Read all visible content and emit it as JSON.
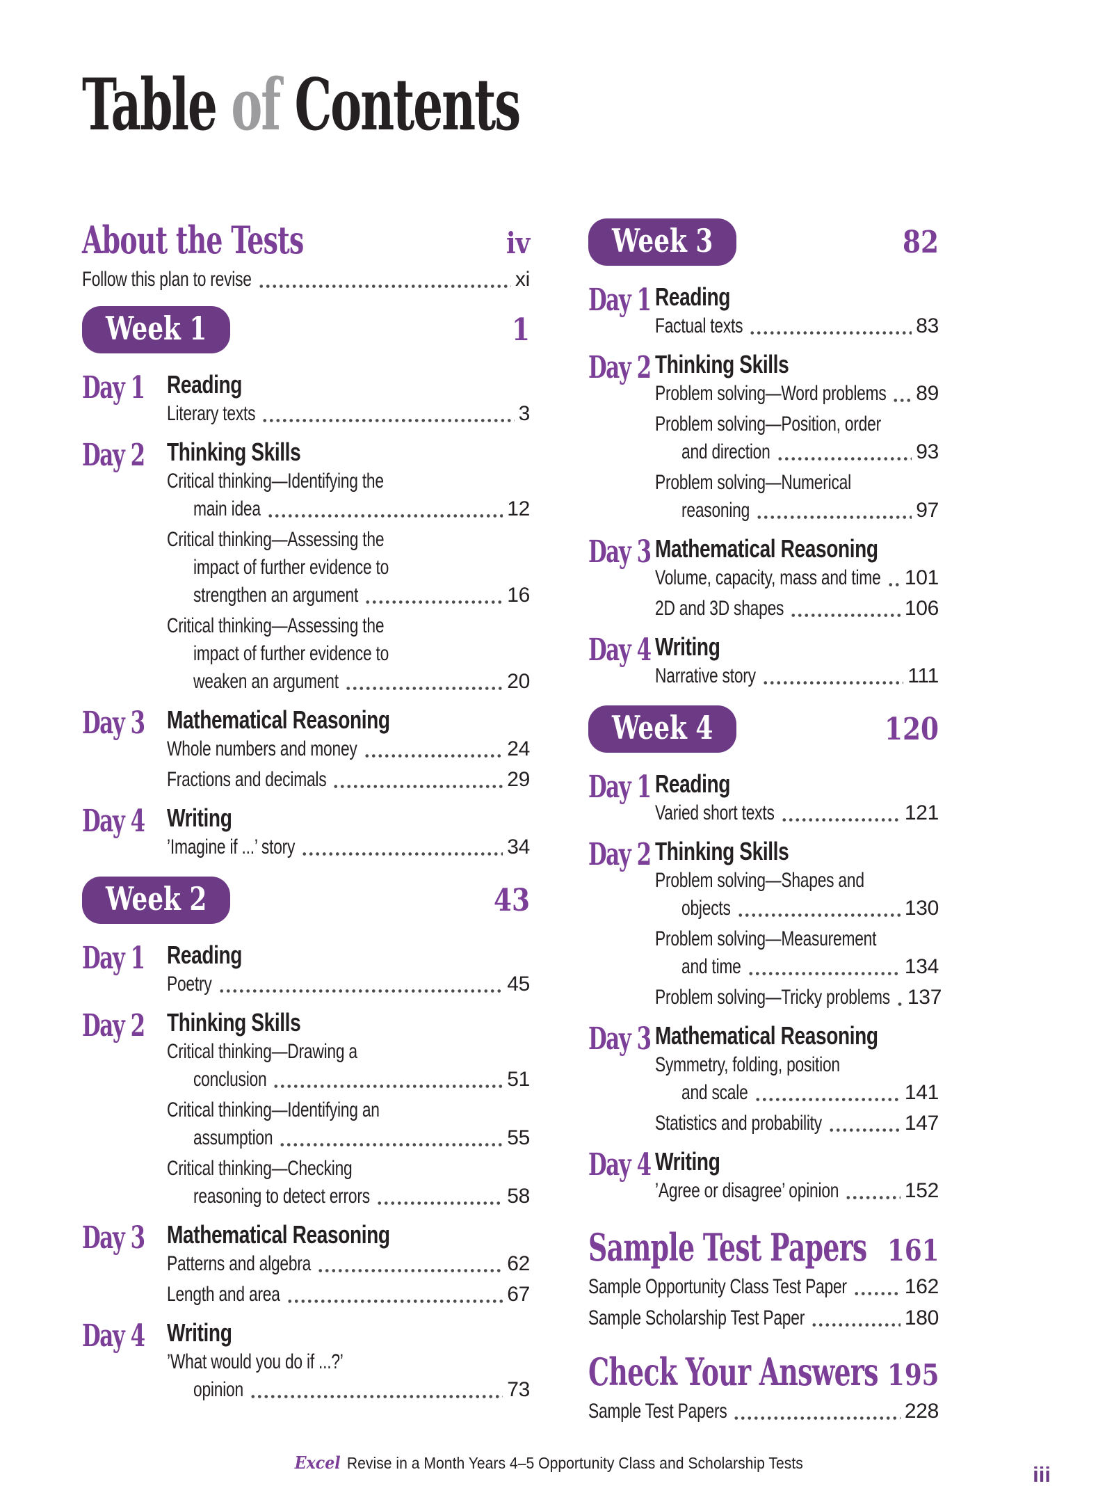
{
  "title": {
    "part1": "Table",
    "part2": "of",
    "part3": "Contents"
  },
  "colors": {
    "accent_purple": "#7c3f98",
    "badge_purple": "#6d3b86",
    "title_gray": "#9c9c9e",
    "text_black": "#242021",
    "dot_gray": "#4c4c4e"
  },
  "columns": [
    {
      "blocks": [
        {
          "type": "section",
          "title": "About the Tests",
          "page": "iv",
          "entries": [
            {
              "lines": [
                "Follow this plan to revise"
              ],
              "page": "xi"
            }
          ]
        },
        {
          "type": "week",
          "name": "Week 1",
          "page": "1",
          "days": [
            {
              "label": "Day 1",
              "category": "Reading",
              "entries": [
                {
                  "lines": [
                    "Literary texts"
                  ],
                  "page": "3"
                }
              ]
            },
            {
              "label": "Day 2",
              "category": "Thinking Skills",
              "entries": [
                {
                  "lines": [
                    "Critical thinking—Identifying the",
                    "main idea"
                  ],
                  "page": "12"
                },
                {
                  "lines": [
                    "Critical thinking—Assessing the",
                    "impact of further evidence to",
                    "strengthen an argument"
                  ],
                  "page": "16"
                },
                {
                  "lines": [
                    "Critical thinking—Assessing the",
                    "impact of further evidence to",
                    "weaken an argument"
                  ],
                  "page": "20"
                }
              ]
            },
            {
              "label": "Day 3",
              "category": "Mathematical Reasoning",
              "entries": [
                {
                  "lines": [
                    "Whole numbers and money"
                  ],
                  "page": "24"
                },
                {
                  "lines": [
                    "Fractions and decimals"
                  ],
                  "page": "29"
                }
              ]
            },
            {
              "label": "Day 4",
              "category": "Writing",
              "entries": [
                {
                  "lines": [
                    "’Imagine if ...’ story"
                  ],
                  "page": "34"
                }
              ]
            }
          ]
        },
        {
          "type": "week",
          "name": "Week 2",
          "page": "43",
          "days": [
            {
              "label": "Day 1",
              "category": "Reading",
              "entries": [
                {
                  "lines": [
                    "Poetry"
                  ],
                  "page": "45"
                }
              ]
            },
            {
              "label": "Day 2",
              "category": "Thinking Skills",
              "entries": [
                {
                  "lines": [
                    "Critical thinking—Drawing a",
                    "conclusion"
                  ],
                  "page": "51"
                },
                {
                  "lines": [
                    "Critical thinking—Identifying an",
                    "assumption"
                  ],
                  "page": "55"
                },
                {
                  "lines": [
                    "Critical thinking—Checking",
                    "reasoning to detect errors"
                  ],
                  "page": "58"
                }
              ]
            },
            {
              "label": "Day 3",
              "category": "Mathematical Reasoning",
              "entries": [
                {
                  "lines": [
                    "Patterns and algebra"
                  ],
                  "page": "62"
                },
                {
                  "lines": [
                    "Length and area"
                  ],
                  "page": "67"
                }
              ]
            },
            {
              "label": "Day 4",
              "category": "Writing",
              "entries": [
                {
                  "lines": [
                    "’What would you do if ...?’",
                    "opinion"
                  ],
                  "page": "73"
                }
              ]
            }
          ]
        }
      ]
    },
    {
      "blocks": [
        {
          "type": "week",
          "name": "Week 3",
          "page": "82",
          "days": [
            {
              "label": "Day 1",
              "category": "Reading",
              "entries": [
                {
                  "lines": [
                    "Factual texts"
                  ],
                  "page": "83"
                }
              ]
            },
            {
              "label": "Day 2",
              "category": "Thinking Skills",
              "entries": [
                {
                  "lines": [
                    "Problem solving—Word problems"
                  ],
                  "page": "89"
                },
                {
                  "lines": [
                    "Problem solving—Position, order",
                    "and direction"
                  ],
                  "page": "93"
                },
                {
                  "lines": [
                    "Problem solving—Numerical",
                    "reasoning"
                  ],
                  "page": "97"
                }
              ]
            },
            {
              "label": "Day 3",
              "category": "Mathematical Reasoning",
              "entries": [
                {
                  "lines": [
                    "Volume, capacity, mass and time"
                  ],
                  "page": "101"
                },
                {
                  "lines": [
                    "2D and 3D shapes"
                  ],
                  "page": "106"
                }
              ]
            },
            {
              "label": "Day 4",
              "category": "Writing",
              "entries": [
                {
                  "lines": [
                    "Narrative story"
                  ],
                  "page": "111"
                }
              ]
            }
          ]
        },
        {
          "type": "week",
          "name": "Week 4",
          "page": "120",
          "days": [
            {
              "label": "Day 1",
              "category": "Reading",
              "entries": [
                {
                  "lines": [
                    "Varied short texts"
                  ],
                  "page": "121"
                }
              ]
            },
            {
              "label": "Day 2",
              "category": "Thinking Skills",
              "entries": [
                {
                  "lines": [
                    "Problem solving—Shapes and",
                    "objects"
                  ],
                  "page": "130"
                },
                {
                  "lines": [
                    "Problem solving—Measurement",
                    "and time"
                  ],
                  "page": "134"
                },
                {
                  "lines": [
                    "Problem solving—Tricky problems"
                  ],
                  "page": "137"
                }
              ]
            },
            {
              "label": "Day 3",
              "category": "Mathematical Reasoning",
              "entries": [
                {
                  "lines": [
                    "Symmetry, folding, position",
                    "and scale"
                  ],
                  "page": "141"
                },
                {
                  "lines": [
                    "Statistics and probability"
                  ],
                  "page": "147"
                }
              ]
            },
            {
              "label": "Day 4",
              "category": "Writing",
              "entries": [
                {
                  "lines": [
                    "’Agree or disagree’ opinion"
                  ],
                  "page": "152"
                }
              ]
            }
          ]
        },
        {
          "type": "section",
          "title": "Sample Test Papers",
          "page": "161",
          "entries": [
            {
              "lines": [
                "Sample Opportunity Class Test Paper"
              ],
              "page": "162"
            },
            {
              "lines": [
                "Sample Scholarship Test Paper"
              ],
              "page": "180"
            }
          ]
        },
        {
          "type": "section",
          "title": "Check Your Answers",
          "page": "195",
          "entries": [
            {
              "lines": [
                "Sample Test Papers"
              ],
              "page": "228"
            }
          ]
        }
      ]
    }
  ],
  "footer": {
    "brand": "Excel",
    "title": "Revise in a Month Years 4–5 Opportunity Class and Scholarship Tests",
    "page_number": "iii"
  }
}
